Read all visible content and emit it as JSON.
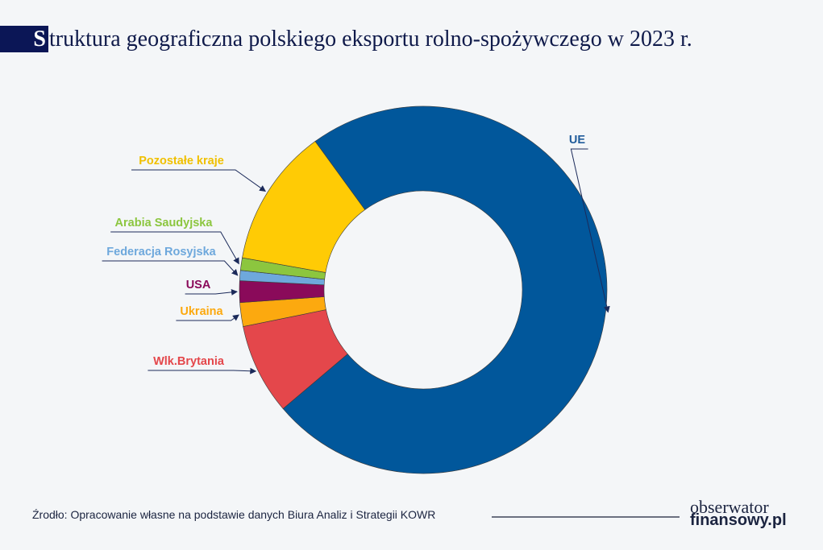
{
  "title": {
    "first_letter": "S",
    "rest": "truktura geograficzna polskiego eksportu rolno-spożywczego w 2023 r."
  },
  "chart_data": {
    "type": "pie",
    "donut": true,
    "title": "Struktura geograficzna polskiego eksportu rolno-spożywczego w 2023 r.",
    "unit": "%",
    "values_estimated": true,
    "slices": [
      {
        "label": "UE",
        "value": 73.8,
        "color": "#01579b",
        "label_color": "#1f5b9a"
      },
      {
        "label": "Wlk.Brytania",
        "value": 8.0,
        "color": "#e4474b",
        "label_color": "#e4474b"
      },
      {
        "label": "Ukraina",
        "value": 2.1,
        "color": "#fca90f",
        "label_color": "#fca90f"
      },
      {
        "label": "USA",
        "value": 1.9,
        "color": "#8a0a5a",
        "label_color": "#8a0a5a"
      },
      {
        "label": "Federacja Rosyjska",
        "value": 0.9,
        "color": "#6ea8dc",
        "label_color": "#6ea8dc"
      },
      {
        "label": "Arabia Saudyjska",
        "value": 1.1,
        "color": "#8cc63f",
        "label_color": "#8cc63f"
      },
      {
        "label": "Pozostałe kraje",
        "value": 12.2,
        "color": "#ffcb05",
        "label_color": "#f0c000"
      }
    ]
  },
  "source": "Źrodło: Opracowanie własne na podstawie danych Biura Analiz i Strategii KOWR",
  "logo": {
    "line1": "obserwator",
    "line2": "finansowy.pl"
  }
}
